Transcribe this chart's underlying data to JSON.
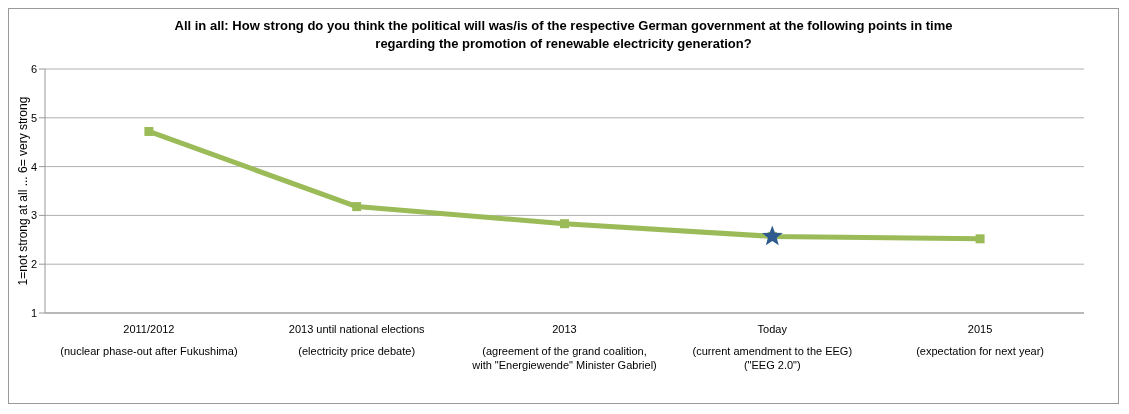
{
  "chart_data": {
    "type": "line",
    "title": "All in all: How strong do you think the political will was/is of the respective German government at the following points in  time regarding the promotion of renewable electricity generation?",
    "ylabel": "1=not strong at all  ...  6= very strong",
    "categories": [
      "2011/2012\n\n(nuclear phase-out after Fukushima)",
      "2013 until national elections\n\n(electricity price debate)",
      "2013\n\n(agreement of the grand coalition,\nwith \"Energiewende\" Minister Gabriel)",
      "Today\n\n(current amendment to the EEG)\n(\"EEG 2.0\")",
      "2015\n\n(expectation for next year)"
    ],
    "series": [
      {
        "color": "#9bbb59",
        "values": [
          4.72,
          3.18,
          2.83,
          2.57,
          2.52
        ],
        "marker": "square"
      },
      {
        "type": "scatter",
        "color": "#2f5a8f",
        "x": [
          "Today\n\n(current amendment to the EEG)\n(\"EEG 2.0\")"
        ],
        "values": [
          2.57
        ],
        "marker": "star"
      }
    ],
    "ylim": [
      1,
      6
    ],
    "yticks": [
      1,
      2,
      3,
      4,
      5,
      6
    ],
    "grid": "y"
  }
}
